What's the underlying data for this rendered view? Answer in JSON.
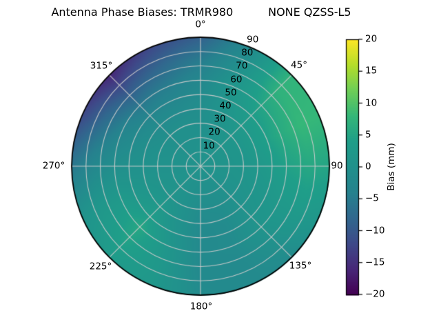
{
  "title": "Antenna Phase Biases: TRMR980          NONE QZSS-L5",
  "polar_axes": {
    "angle_tick_labels": [
      "0°",
      "45°",
      "90",
      "135°",
      "180°",
      "225°",
      "270°",
      "315°"
    ],
    "radial_tick_labels": [
      "10",
      "20",
      "30",
      "40",
      "50",
      "60",
      "70",
      "80",
      "90"
    ]
  },
  "colorbar": {
    "label": "Bias (mm)",
    "tick_labels": [
      "20",
      "15",
      "10",
      "5",
      "0",
      "−5",
      "−10",
      "−15",
      "−20"
    ],
    "vmin": -20,
    "vmax": 20,
    "colormap": "viridis"
  },
  "colors": {
    "viridis_stops": [
      "#440154",
      "#482878",
      "#3e4a89",
      "#31688e",
      "#26828e",
      "#21918c",
      "#1f9e89",
      "#35b779",
      "#6ece58",
      "#b5de2b",
      "#fde725"
    ],
    "gridline": "rgba(203,203,203,0.95)",
    "outline": "#000000",
    "text": "#000000",
    "background": "#ffffff"
  },
  "chart_data": {
    "type": "heatmap",
    "projection": "polar",
    "title": "Antenna Phase Biases: TRMR980          NONE QZSS-L5",
    "value_label": "Bias (mm)",
    "colormap": "viridis",
    "vmin": -20,
    "vmax": 20,
    "angle_gridlines_deg": [
      0,
      45,
      90,
      135,
      180,
      225,
      270,
      315
    ],
    "radial_gridlines": [
      10,
      20,
      30,
      40,
      50,
      60,
      70,
      80
    ],
    "radial_max": 90,
    "colorbar_ticks": [
      20,
      15,
      10,
      5,
      0,
      -5,
      -10,
      -15,
      -20
    ],
    "azimuth_deg": [
      0,
      22.5,
      45,
      67.5,
      90,
      112.5,
      135,
      157.5,
      180,
      202.5,
      225,
      247.5,
      270,
      292.5,
      315,
      337.5
    ],
    "radius": [
      0,
      15,
      30,
      45,
      60,
      75,
      90
    ],
    "values_mm": [
      [
        0.5,
        0.3,
        -0.5,
        -1.0,
        -2.5,
        -5.0,
        -9.0
      ],
      [
        0.5,
        0.5,
        0.5,
        1.0,
        1.5,
        0.0,
        -2.0
      ],
      [
        0.5,
        0.8,
        1.5,
        3.0,
        5.0,
        7.0,
        7.5
      ],
      [
        0.5,
        0.8,
        1.5,
        3.5,
        6.0,
        8.0,
        8.0
      ],
      [
        0.5,
        0.8,
        1.2,
        2.5,
        4.5,
        5.5,
        5.0
      ],
      [
        0.5,
        0.5,
        0.8,
        1.5,
        2.5,
        3.0,
        2.0
      ],
      [
        0.5,
        0.0,
        0.0,
        0.5,
        1.0,
        0.0,
        -1.5
      ],
      [
        0.5,
        -0.3,
        -1.0,
        -1.5,
        -1.5,
        -2.0,
        -2.0
      ],
      [
        0.5,
        -0.3,
        -1.2,
        -2.0,
        -2.0,
        -2.0,
        -1.5
      ],
      [
        0.5,
        0.0,
        0.0,
        0.5,
        1.5,
        2.0,
        2.0
      ],
      [
        0.5,
        0.5,
        1.0,
        3.0,
        5.5,
        4.5,
        3.0
      ],
      [
        0.5,
        0.5,
        0.8,
        1.5,
        2.5,
        2.0,
        0.5
      ],
      [
        0.5,
        0.3,
        0.3,
        0.0,
        -0.5,
        -2.5,
        -5.5
      ],
      [
        0.5,
        0.3,
        0.0,
        -1.0,
        -3.0,
        -7.0,
        -12.0
      ],
      [
        0.5,
        0.0,
        -0.5,
        -2.0,
        -5.5,
        -10.5,
        -16.0
      ],
      [
        0.5,
        0.0,
        -0.3,
        -2.0,
        -4.5,
        -8.0,
        -12.0
      ]
    ]
  }
}
